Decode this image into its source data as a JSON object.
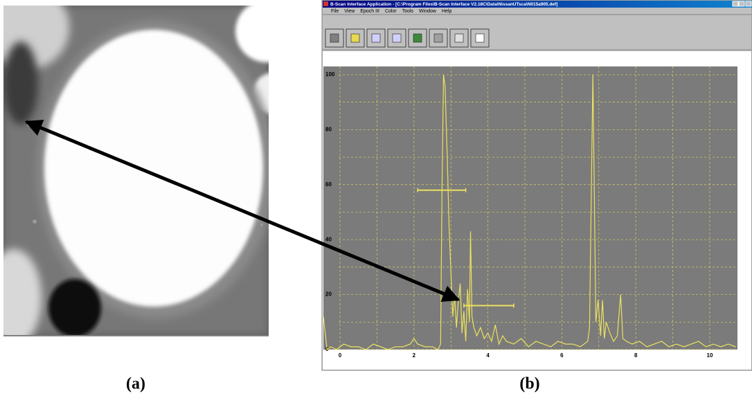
{
  "window": {
    "title": "B-Scan Interface Application - [C:\\Program Files\\B-Scan Interface V2.18C\\Data\\NissanUTsca\\N015a905.def]",
    "menu": [
      "File",
      "View",
      "Epoch III",
      "Color",
      "Tools",
      "Window",
      "Help"
    ]
  },
  "labels": {
    "a": "(a)",
    "b": "(b)"
  },
  "chart_data": {
    "type": "line",
    "color": "#ece25e",
    "background": "#7b7b7b",
    "grid": true,
    "minor_grid": true,
    "xlim": [
      -0.45,
      10.75
    ],
    "ylim": [
      0,
      103
    ],
    "xticks": [
      0,
      2,
      4,
      6,
      8,
      10
    ],
    "yticks": [
      0,
      20,
      40,
      60,
      80,
      100
    ],
    "x": [
      -0.45,
      -0.4,
      -0.35,
      -0.25,
      -0.1,
      0.1,
      0.3,
      0.5,
      0.7,
      0.9,
      1.1,
      1.3,
      1.5,
      1.7,
      1.9,
      2.0,
      2.1,
      2.3,
      2.5,
      2.65,
      2.72,
      2.76,
      2.8,
      2.84,
      2.9,
      2.95,
      3.0,
      3.05,
      3.1,
      3.15,
      3.2,
      3.25,
      3.3,
      3.35,
      3.4,
      3.45,
      3.5,
      3.53,
      3.57,
      3.62,
      3.7,
      3.8,
      3.9,
      4.0,
      4.1,
      4.2,
      4.3,
      4.4,
      4.5,
      4.7,
      4.9,
      5.1,
      5.3,
      5.5,
      5.7,
      5.9,
      6.1,
      6.3,
      6.5,
      6.7,
      6.75,
      6.8,
      6.84,
      6.88,
      6.92,
      6.98,
      7.05,
      7.1,
      7.15,
      7.2,
      7.3,
      7.4,
      7.5,
      7.59,
      7.65,
      7.75,
      7.9,
      8.1,
      8.3,
      8.5,
      8.7,
      8.9,
      9.1,
      9.3,
      9.5,
      9.7,
      9.9,
      10.1,
      10.3,
      10.5,
      10.7
    ],
    "values": [
      12,
      6,
      0,
      1,
      0,
      2,
      1,
      1,
      0,
      2,
      1,
      0,
      1,
      1,
      2,
      4,
      2,
      1,
      1,
      0,
      2,
      60,
      100,
      96,
      70,
      45,
      28,
      12,
      20,
      8,
      18,
      24,
      6,
      14,
      3,
      22,
      10,
      43,
      12,
      8,
      5,
      8,
      4,
      6,
      3,
      9,
      2,
      5,
      3,
      2,
      4,
      1,
      3,
      2,
      1,
      3,
      2,
      2,
      1,
      3,
      8,
      60,
      100,
      55,
      10,
      18,
      5,
      18,
      4,
      10,
      6,
      3,
      5,
      20,
      4,
      3,
      2,
      3,
      1,
      2,
      3,
      1,
      2,
      1,
      2,
      3,
      1,
      2,
      1,
      2,
      1
    ],
    "gates": [
      {
        "x": [
          2.1,
          3.4
        ],
        "y": 58
      },
      {
        "x": [
          3.35,
          4.7
        ],
        "y": 16
      }
    ]
  }
}
